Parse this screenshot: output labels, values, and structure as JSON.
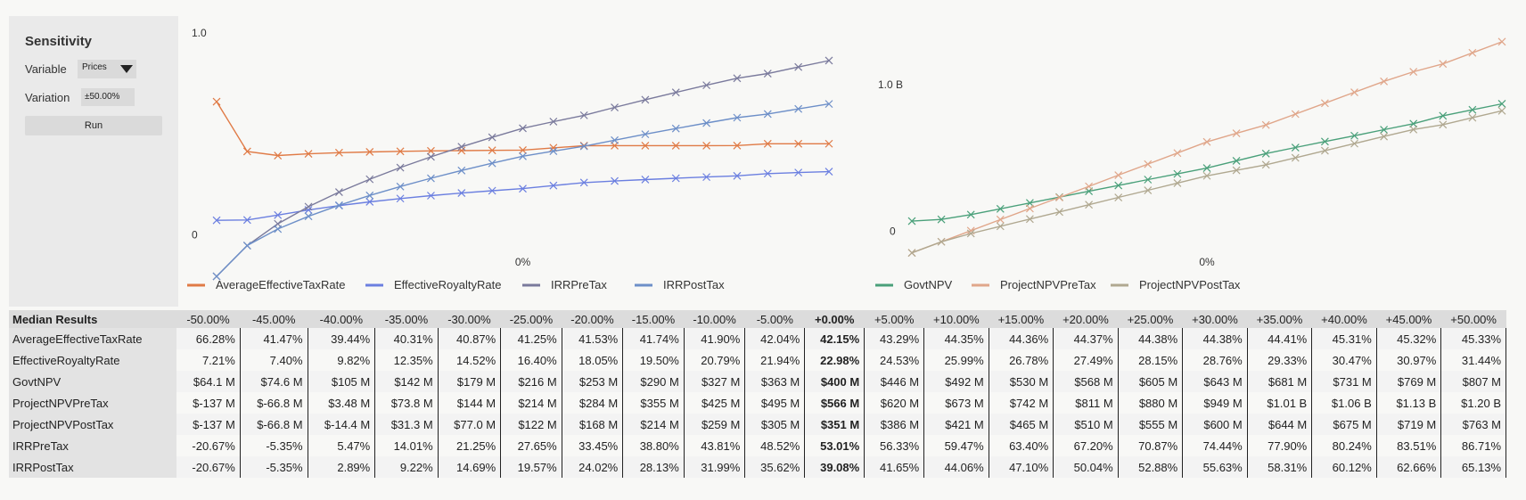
{
  "sidebar": {
    "title": "Sensitivity",
    "variable_label": "Variable",
    "variable_value": "Prices",
    "variation_label": "Variation",
    "variation_value": "±50.00%",
    "run_label": "Run"
  },
  "chart_data": [
    {
      "type": "line",
      "x": [
        -50,
        -45,
        -40,
        -35,
        -30,
        -25,
        -20,
        -15,
        -10,
        -5,
        0,
        5,
        10,
        15,
        20,
        25,
        30,
        35,
        40,
        45,
        50
      ],
      "xtick": "0%",
      "ytick_top": "1.0",
      "ytick_zero": "0",
      "ylim": [
        -0.1,
        1.0
      ],
      "series": [
        {
          "name": "AverageEffectiveTaxRate",
          "color": "#e07a45",
          "values": [
            0.6628,
            0.4147,
            0.3944,
            0.4031,
            0.4087,
            0.4125,
            0.4153,
            0.4174,
            0.419,
            0.4204,
            0.4215,
            0.4329,
            0.4435,
            0.4436,
            0.4437,
            0.4438,
            0.4438,
            0.4441,
            0.4531,
            0.4532,
            0.4533
          ]
        },
        {
          "name": "EffectiveRoyaltyRate",
          "color": "#6b7fe0",
          "values": [
            0.0721,
            0.074,
            0.0982,
            0.1235,
            0.1452,
            0.164,
            0.1805,
            0.195,
            0.2079,
            0.2194,
            0.2298,
            0.2453,
            0.2599,
            0.2678,
            0.2749,
            0.2815,
            0.2876,
            0.2933,
            0.3047,
            0.3097,
            0.3144
          ]
        },
        {
          "name": "IRRPreTax",
          "color": "#7a7a9c",
          "values": [
            -0.2067,
            -0.0535,
            0.0547,
            0.1401,
            0.2125,
            0.2765,
            0.3345,
            0.388,
            0.4381,
            0.4852,
            0.5301,
            0.5633,
            0.5947,
            0.634,
            0.672,
            0.7087,
            0.7444,
            0.779,
            0.8024,
            0.8351,
            0.8671
          ]
        },
        {
          "name": "IRRPostTax",
          "color": "#6d8fc8",
          "values": [
            -0.2067,
            -0.0535,
            0.0289,
            0.0922,
            0.1469,
            0.1957,
            0.2402,
            0.2813,
            0.3199,
            0.3562,
            0.3908,
            0.4165,
            0.4406,
            0.471,
            0.5004,
            0.5288,
            0.5563,
            0.5831,
            0.6012,
            0.6266,
            0.6513
          ]
        }
      ]
    },
    {
      "type": "line",
      "x": [
        -50,
        -45,
        -40,
        -35,
        -30,
        -25,
        -20,
        -15,
        -10,
        -5,
        0,
        5,
        10,
        15,
        20,
        25,
        30,
        35,
        40,
        45,
        50
      ],
      "xtick": "0%",
      "ytick_top": "1.0 B",
      "ytick_zero": "0",
      "ylim": [
        -0.15,
        1.25
      ],
      "series": [
        {
          "name": "GovtNPV",
          "color": "#4aa07a",
          "values": [
            0.0641,
            0.0746,
            0.105,
            0.142,
            0.179,
            0.216,
            0.253,
            0.29,
            0.327,
            0.363,
            0.4,
            0.446,
            0.492,
            0.53,
            0.568,
            0.605,
            0.643,
            0.681,
            0.731,
            0.769,
            0.807
          ]
        },
        {
          "name": "ProjectNPVPreTax",
          "color": "#e0a68a",
          "values": [
            -0.137,
            -0.0668,
            0.00348,
            0.0738,
            0.144,
            0.214,
            0.284,
            0.355,
            0.425,
            0.495,
            0.566,
            0.62,
            0.673,
            0.742,
            0.811,
            0.88,
            0.949,
            1.01,
            1.06,
            1.13,
            1.2
          ]
        },
        {
          "name": "ProjectNPVPostTax",
          "color": "#b0a890",
          "values": [
            -0.137,
            -0.0668,
            -0.0144,
            0.0313,
            0.077,
            0.122,
            0.168,
            0.214,
            0.259,
            0.305,
            0.351,
            0.386,
            0.421,
            0.465,
            0.51,
            0.555,
            0.6,
            0.644,
            0.675,
            0.719,
            0.763
          ]
        }
      ]
    }
  ],
  "table": {
    "corner": "Median Results",
    "columns": [
      "-50.00%",
      "-45.00%",
      "-40.00%",
      "-35.00%",
      "-30.00%",
      "-25.00%",
      "-20.00%",
      "-15.00%",
      "-10.00%",
      "-5.00%",
      "+0.00%",
      "+5.00%",
      "+10.00%",
      "+15.00%",
      "+20.00%",
      "+25.00%",
      "+30.00%",
      "+35.00%",
      "+40.00%",
      "+45.00%",
      "+50.00%"
    ],
    "rows": [
      {
        "label": "AverageEffectiveTaxRate",
        "values": [
          "66.28%",
          "41.47%",
          "39.44%",
          "40.31%",
          "40.87%",
          "41.25%",
          "41.53%",
          "41.74%",
          "41.90%",
          "42.04%",
          "42.15%",
          "43.29%",
          "44.35%",
          "44.36%",
          "44.37%",
          "44.38%",
          "44.38%",
          "44.41%",
          "45.31%",
          "45.32%",
          "45.33%"
        ]
      },
      {
        "label": "EffectiveRoyaltyRate",
        "values": [
          "7.21%",
          "7.40%",
          "9.82%",
          "12.35%",
          "14.52%",
          "16.40%",
          "18.05%",
          "19.50%",
          "20.79%",
          "21.94%",
          "22.98%",
          "24.53%",
          "25.99%",
          "26.78%",
          "27.49%",
          "28.15%",
          "28.76%",
          "29.33%",
          "30.47%",
          "30.97%",
          "31.44%"
        ]
      },
      {
        "label": "GovtNPV",
        "values": [
          "$64.1 M",
          "$74.6 M",
          "$105 M",
          "$142 M",
          "$179 M",
          "$216 M",
          "$253 M",
          "$290 M",
          "$327 M",
          "$363 M",
          "$400 M",
          "$446 M",
          "$492 M",
          "$530 M",
          "$568 M",
          "$605 M",
          "$643 M",
          "$681 M",
          "$731 M",
          "$769 M",
          "$807 M"
        ]
      },
      {
        "label": "ProjectNPVPreTax",
        "values": [
          "$-137 M",
          "$-66.8 M",
          "$3.48 M",
          "$73.8 M",
          "$144 M",
          "$214 M",
          "$284 M",
          "$355 M",
          "$425 M",
          "$495 M",
          "$566 M",
          "$620 M",
          "$673 M",
          "$742 M",
          "$811 M",
          "$880 M",
          "$949 M",
          "$1.01 B",
          "$1.06 B",
          "$1.13 B",
          "$1.20 B"
        ]
      },
      {
        "label": "ProjectNPVPostTax",
        "values": [
          "$-137 M",
          "$-66.8 M",
          "$-14.4 M",
          "$31.3 M",
          "$77.0 M",
          "$122 M",
          "$168 M",
          "$214 M",
          "$259 M",
          "$305 M",
          "$351 M",
          "$386 M",
          "$421 M",
          "$465 M",
          "$510 M",
          "$555 M",
          "$600 M",
          "$644 M",
          "$675 M",
          "$719 M",
          "$763 M"
        ]
      },
      {
        "label": "IRRPreTax",
        "values": [
          "-20.67%",
          "-5.35%",
          "5.47%",
          "14.01%",
          "21.25%",
          "27.65%",
          "33.45%",
          "38.80%",
          "43.81%",
          "48.52%",
          "53.01%",
          "56.33%",
          "59.47%",
          "63.40%",
          "67.20%",
          "70.87%",
          "74.44%",
          "77.90%",
          "80.24%",
          "83.51%",
          "86.71%"
        ]
      },
      {
        "label": "IRRPostTax",
        "values": [
          "-20.67%",
          "-5.35%",
          "2.89%",
          "9.22%",
          "14.69%",
          "19.57%",
          "24.02%",
          "28.13%",
          "31.99%",
          "35.62%",
          "39.08%",
          "41.65%",
          "44.06%",
          "47.10%",
          "50.04%",
          "52.88%",
          "55.63%",
          "58.31%",
          "60.12%",
          "62.66%",
          "65.13%"
        ]
      }
    ]
  }
}
